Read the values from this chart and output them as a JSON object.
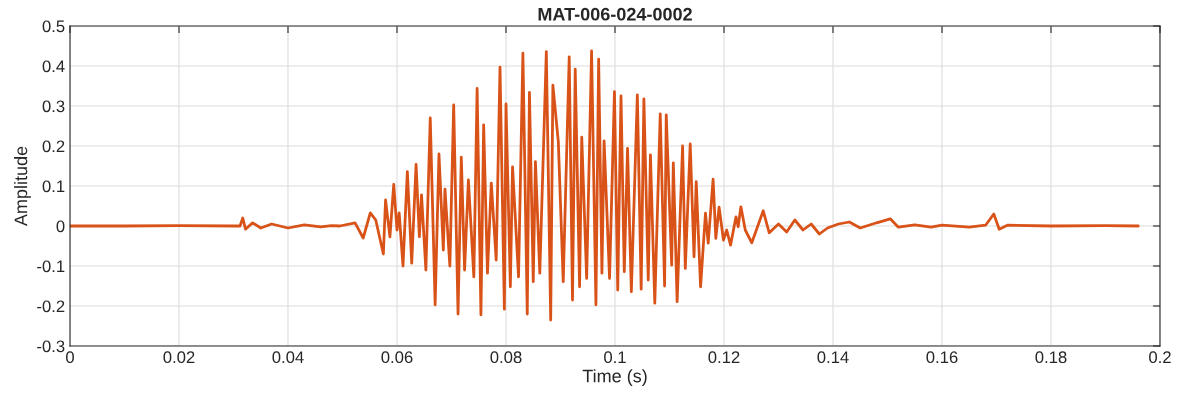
{
  "chart_data": {
    "type": "line",
    "title": "MAT-006-024-0002",
    "xlabel": "Time (s)",
    "ylabel": "Amplitude",
    "x": [
      0,
      0.01,
      0.02,
      0.03,
      0.0312,
      0.0317,
      0.0322,
      0.0335,
      0.035,
      0.037,
      0.04,
      0.043,
      0.046,
      0.048,
      0.0495,
      0.0523,
      0.0538,
      0.0551,
      0.0561,
      0.0575,
      0.0579,
      0.0587,
      0.0594,
      0.06,
      0.0604,
      0.0611,
      0.0619,
      0.0627,
      0.0635,
      0.0641,
      0.0645,
      0.0653,
      0.0661,
      0.067,
      0.0677,
      0.0685,
      0.0688,
      0.0697,
      0.0704,
      0.0712,
      0.0718,
      0.0724,
      0.0731,
      0.0741,
      0.0747,
      0.0754,
      0.0759,
      0.0766,
      0.0773,
      0.0782,
      0.0789,
      0.0797,
      0.08,
      0.0808,
      0.0812,
      0.0823,
      0.0831,
      0.0839,
      0.0843,
      0.085,
      0.0854,
      0.0862,
      0.0874,
      0.0882,
      0.0886,
      0.0896,
      0.0905,
      0.0916,
      0.0922,
      0.0927,
      0.0935,
      0.0939,
      0.0948,
      0.0957,
      0.0965,
      0.097,
      0.0976,
      0.098,
      0.099,
      0.0999,
      0.1005,
      0.1011,
      0.1017,
      0.1023,
      0.103,
      0.1041,
      0.1048,
      0.1053,
      0.1061,
      0.1065,
      0.1073,
      0.1083,
      0.1091,
      0.1094,
      0.1104,
      0.1107,
      0.1114,
      0.1124,
      0.1129,
      0.1138,
      0.1145,
      0.1149,
      0.1157,
      0.1166,
      0.1171,
      0.118,
      0.1185,
      0.1191,
      0.1199,
      0.1205,
      0.1212,
      0.1222,
      0.1226,
      0.1231,
      0.1239,
      0.1251,
      0.1272,
      0.1283,
      0.13,
      0.1315,
      0.133,
      0.1345,
      0.136,
      0.1375,
      0.139,
      0.141,
      0.143,
      0.145,
      0.148,
      0.1505,
      0.152,
      0.155,
      0.158,
      0.16,
      0.165,
      0.168,
      0.1695,
      0.1705,
      0.172,
      0.18,
      0.19,
      0.196
    ],
    "series": [
      {
        "color": "#d95319",
        "values": [
          0,
          0,
          0.001,
          0,
          0,
          0.02,
          -0.008,
          0.008,
          -0.005,
          0.005,
          -0.005,
          0.003,
          -0.002,
          0.001,
          0,
          0.008,
          -0.03,
          0.033,
          0.015,
          -0.07,
          0.065,
          -0.027,
          0.104,
          -0.01,
          0.033,
          -0.1,
          0.136,
          -0.093,
          0.154,
          -0.027,
          0.078,
          -0.11,
          0.27,
          -0.197,
          0.18,
          -0.06,
          0.092,
          -0.1,
          0.303,
          -0.22,
          0.172,
          -0.11,
          0.115,
          -0.127,
          0.344,
          -0.222,
          0.253,
          -0.118,
          0.107,
          -0.085,
          0.397,
          -0.208,
          0.305,
          -0.152,
          0.148,
          -0.127,
          0.432,
          -0.22,
          0.334,
          -0.139,
          0.161,
          -0.118,
          0.436,
          -0.235,
          0.352,
          0.211,
          -0.139,
          0.423,
          -0.185,
          0.392,
          -0.152,
          0.222,
          -0.131,
          0.438,
          -0.197,
          0.417,
          -0.118,
          0.213,
          -0.131,
          0.336,
          -0.16,
          0.325,
          -0.114,
          0.194,
          -0.164,
          0.328,
          -0.158,
          0.318,
          -0.135,
          0.178,
          -0.193,
          0.28,
          -0.15,
          0.278,
          -0.098,
          0.158,
          -0.189,
          0.2,
          -0.106,
          0.205,
          -0.077,
          0.111,
          -0.152,
          0.032,
          -0.043,
          0.117,
          -0.031,
          0.047,
          -0.035,
          -0.01,
          -0.048,
          0.023,
          -0.002,
          0.048,
          -0.01,
          -0.042,
          0.038,
          -0.017,
          0.005,
          -0.015,
          0.015,
          -0.01,
          0.005,
          -0.02,
          -0.005,
          0.005,
          0.01,
          -0.005,
          0.008,
          0.018,
          -0.003,
          0.003,
          -0.003,
          0.002,
          -0.003,
          0.002,
          0.03,
          -0.008,
          0.002,
          0,
          0.001,
          0
        ]
      }
    ],
    "xlim": [
      0,
      0.2
    ],
    "xticks": [
      0,
      0.02,
      0.04,
      0.06,
      0.08,
      0.1,
      0.12,
      0.14,
      0.16,
      0.18,
      0.2
    ],
    "ylim": [
      -0.3,
      0.5
    ],
    "yticks": [
      -0.3,
      -0.2,
      -0.1,
      0,
      0.1,
      0.2,
      0.3,
      0.4,
      0.5
    ],
    "grid": true,
    "legend": false,
    "marker": "none",
    "line_style": "solid"
  }
}
